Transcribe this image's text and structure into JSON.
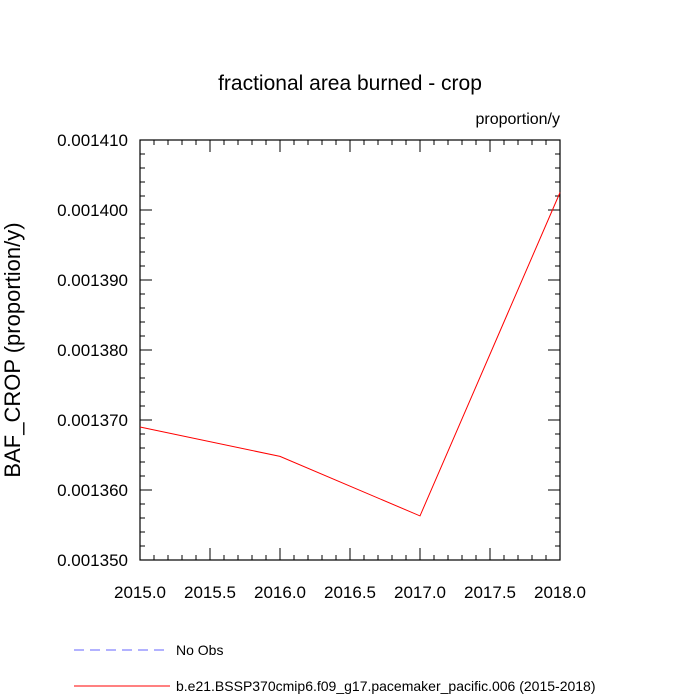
{
  "chart_data": {
    "type": "line",
    "title": "fractional area burned - crop",
    "units": "proportion/y",
    "ylabel": "BAF_CROP  (proportion/y)",
    "xlabel": "",
    "xlim": [
      2015.0,
      2018.0
    ],
    "ylim": [
      0.00135,
      0.00141
    ],
    "x_ticks": [
      "2015.0",
      "2015.5",
      "2016.0",
      "2016.5",
      "2017.0",
      "2017.5",
      "2018.0"
    ],
    "y_ticks": [
      "0.001350",
      "0.001360",
      "0.001370",
      "0.001380",
      "0.001390",
      "0.001400",
      "0.001410"
    ],
    "grid": false,
    "legend_position": "bottom",
    "series": [
      {
        "name": "b.e21.BSSP370cmip6.f09_g17.pacemaker_pacific.006 (2015-2018)",
        "color": "#ff0000",
        "dash": "solid",
        "x": [
          2015,
          2016,
          2017,
          2018
        ],
        "y": [
          0.001369,
          0.0013648,
          0.0013563,
          0.0014025
        ]
      }
    ],
    "legend": [
      {
        "label": "No Obs",
        "color": "#6666ff",
        "dash": "dashed"
      },
      {
        "label": "b.e21.BSSP370cmip6.f09_g17.pacemaker_pacific.006 (2015-2018)",
        "color": "#ff0000",
        "dash": "solid"
      }
    ]
  }
}
